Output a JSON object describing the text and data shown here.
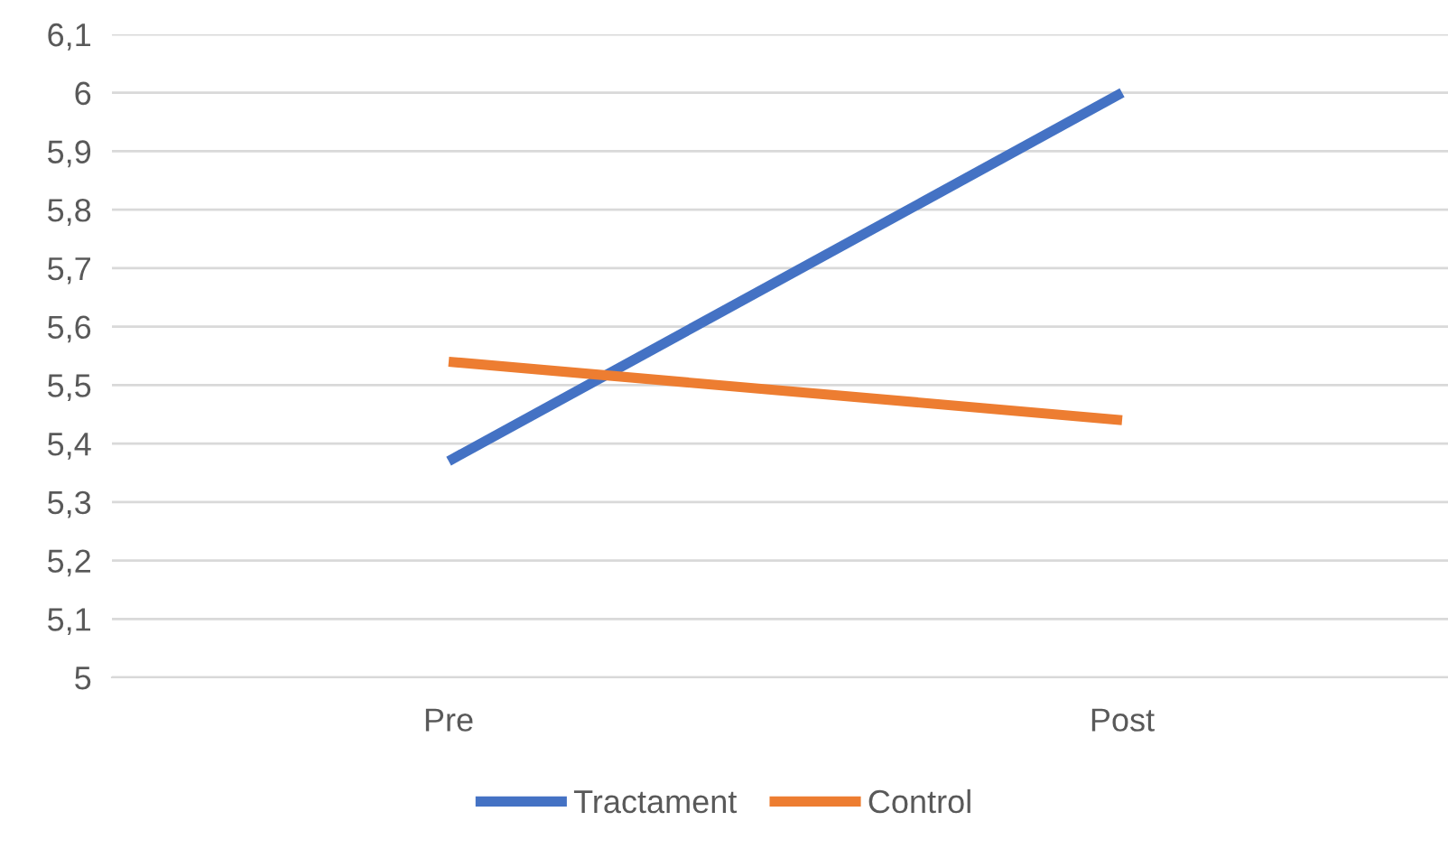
{
  "chart_data": {
    "type": "line",
    "categories": [
      "Pre",
      "Post"
    ],
    "series": [
      {
        "name": "Tractament",
        "color": "#4472c4",
        "values": [
          5.37,
          6.0
        ]
      },
      {
        "name": "Control",
        "color": "#ed7d31",
        "values": [
          5.54,
          5.44
        ]
      }
    ],
    "ylim": [
      5,
      6.1
    ],
    "yticks": [
      5,
      {
        "value": 5.1,
        "label": "5,1"
      },
      {
        "value": 5.2,
        "label": "5,2"
      },
      {
        "value": 5.3,
        "label": "5,3"
      },
      {
        "value": 5.4,
        "label": "5,4"
      },
      {
        "value": 5.5,
        "label": "5,5"
      },
      {
        "value": 5.6,
        "label": "5,6"
      },
      {
        "value": 5.7,
        "label": "5,7"
      },
      {
        "value": 5.8,
        "label": "5,8"
      },
      {
        "value": 5.9,
        "label": "5,9"
      },
      6,
      {
        "value": 6.1,
        "label": "6,1"
      }
    ],
    "grid": "y",
    "legend": "bottom",
    "marker": "none",
    "line_style": "solid"
  }
}
